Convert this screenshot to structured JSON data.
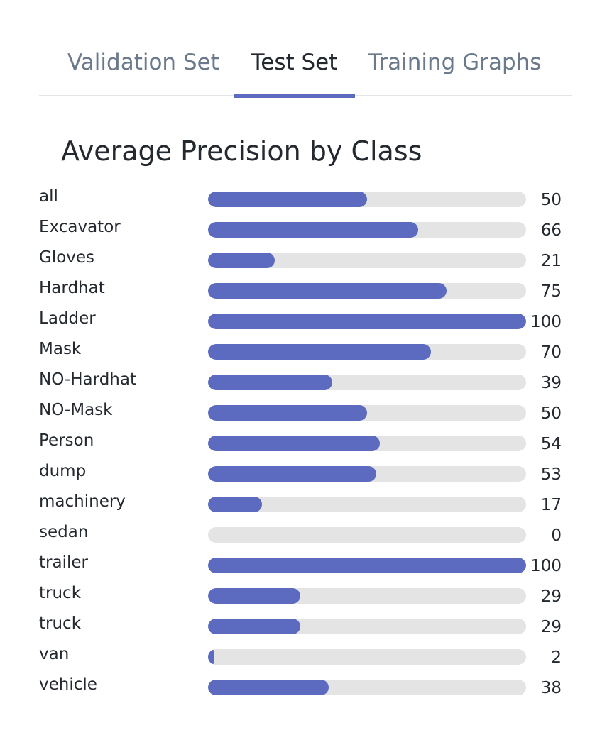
{
  "tabs": [
    {
      "label": "Validation Set",
      "active": false
    },
    {
      "label": "Test Set",
      "active": true
    },
    {
      "label": "Training Graphs",
      "active": false
    }
  ],
  "colors": {
    "accent": "#5c6bc0",
    "track": "#e4e4e4",
    "inactive_tab": "#6b7a8a",
    "text": "#24292f"
  },
  "chart_data": {
    "type": "bar",
    "orientation": "horizontal",
    "title": "Average Precision by Class",
    "xlim": [
      0,
      100
    ],
    "categories": [
      "all",
      "Excavator",
      "Gloves",
      "Hardhat",
      "Ladder",
      "Mask",
      "NO-Hardhat",
      "NO-Mask",
      "Person",
      "dump",
      "machinery",
      "sedan",
      "trailer",
      "truck",
      "truck",
      "van",
      "vehicle"
    ],
    "values": [
      50,
      66,
      21,
      75,
      100,
      70,
      39,
      50,
      54,
      53,
      17,
      0,
      100,
      29,
      29,
      2,
      38
    ]
  }
}
